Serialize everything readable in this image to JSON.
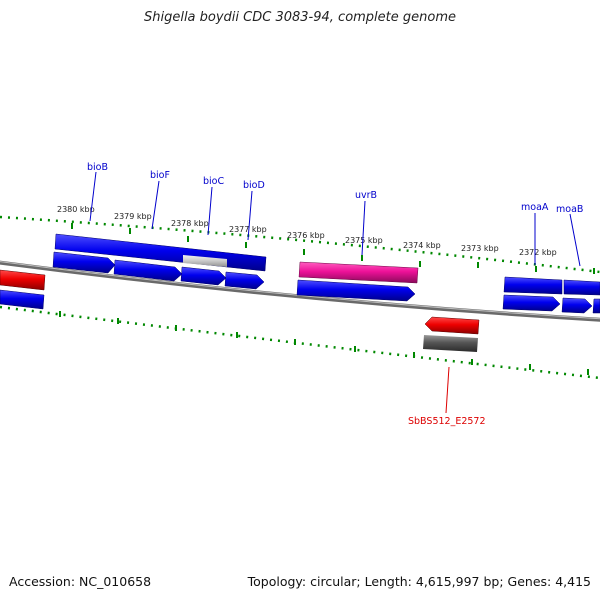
{
  "header": {
    "title": "Shigella boydii CDC 3083-94, complete genome"
  },
  "footer": {
    "accession": "Accession: NC_010658",
    "summary": "Topology: circular; Length: 4,615,997 bp; Genes: 4,415"
  },
  "colors": {
    "forward_gene": "#0000ee",
    "reverse_gene": "#ee0000",
    "highlight_gene": "#ee1199",
    "pseudo_gene": "#555555",
    "tick": "#008800",
    "backbone": "#808080",
    "gene_label": "#0000cc",
    "red_label": "#dd0000"
  },
  "scale": {
    "ticks": [
      "2380 kbp",
      "2379 kbp",
      "2378 kbp",
      "2377 kbp",
      "2376 kbp",
      "2375 kbp",
      "2374 kbp",
      "2373 kbp",
      "2372 kbp"
    ]
  },
  "gene_labels": [
    "bioB",
    "bioF",
    "bioC",
    "bioD",
    "uvrB",
    "moaA",
    "moaB",
    "SbBS512_E2572"
  ]
}
